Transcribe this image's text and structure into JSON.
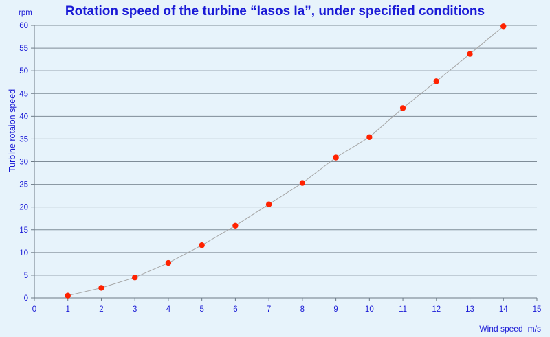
{
  "chart_data": {
    "type": "line",
    "title": "Rotation speed of the turbine “Iasos Ia”, under specified conditions",
    "xlabel": "Wind speed",
    "xunit": "m/s",
    "ylabel": "Turbine rotaion speed",
    "yunit": "rpm",
    "xlim": [
      0,
      15
    ],
    "ylim": [
      0,
      60
    ],
    "xticks": [
      0,
      1,
      2,
      3,
      4,
      5,
      6,
      7,
      8,
      9,
      10,
      11,
      12,
      13,
      14,
      15
    ],
    "yticks": [
      0,
      5,
      10,
      15,
      20,
      25,
      30,
      35,
      40,
      45,
      50,
      55,
      60
    ],
    "grid": true,
    "series": [
      {
        "x": [
          1,
          2,
          3,
          4,
          5,
          6,
          7,
          8,
          9,
          10,
          11,
          12,
          13,
          14
        ],
        "y": [
          0.5,
          2.2,
          4.5,
          7.7,
          11.6,
          15.9,
          20.6,
          25.3,
          30.9,
          35.4,
          41.8,
          47.7,
          53.7,
          59.8
        ],
        "marker_color": "#ff2200",
        "line_color": "#a6a6a6"
      }
    ]
  },
  "colors": {
    "background": "#e7f3fb",
    "plot_background": "#e7f3fb",
    "grid": "#7f8c97",
    "axis": "#6c7a86",
    "text": "#1a1ad6"
  }
}
